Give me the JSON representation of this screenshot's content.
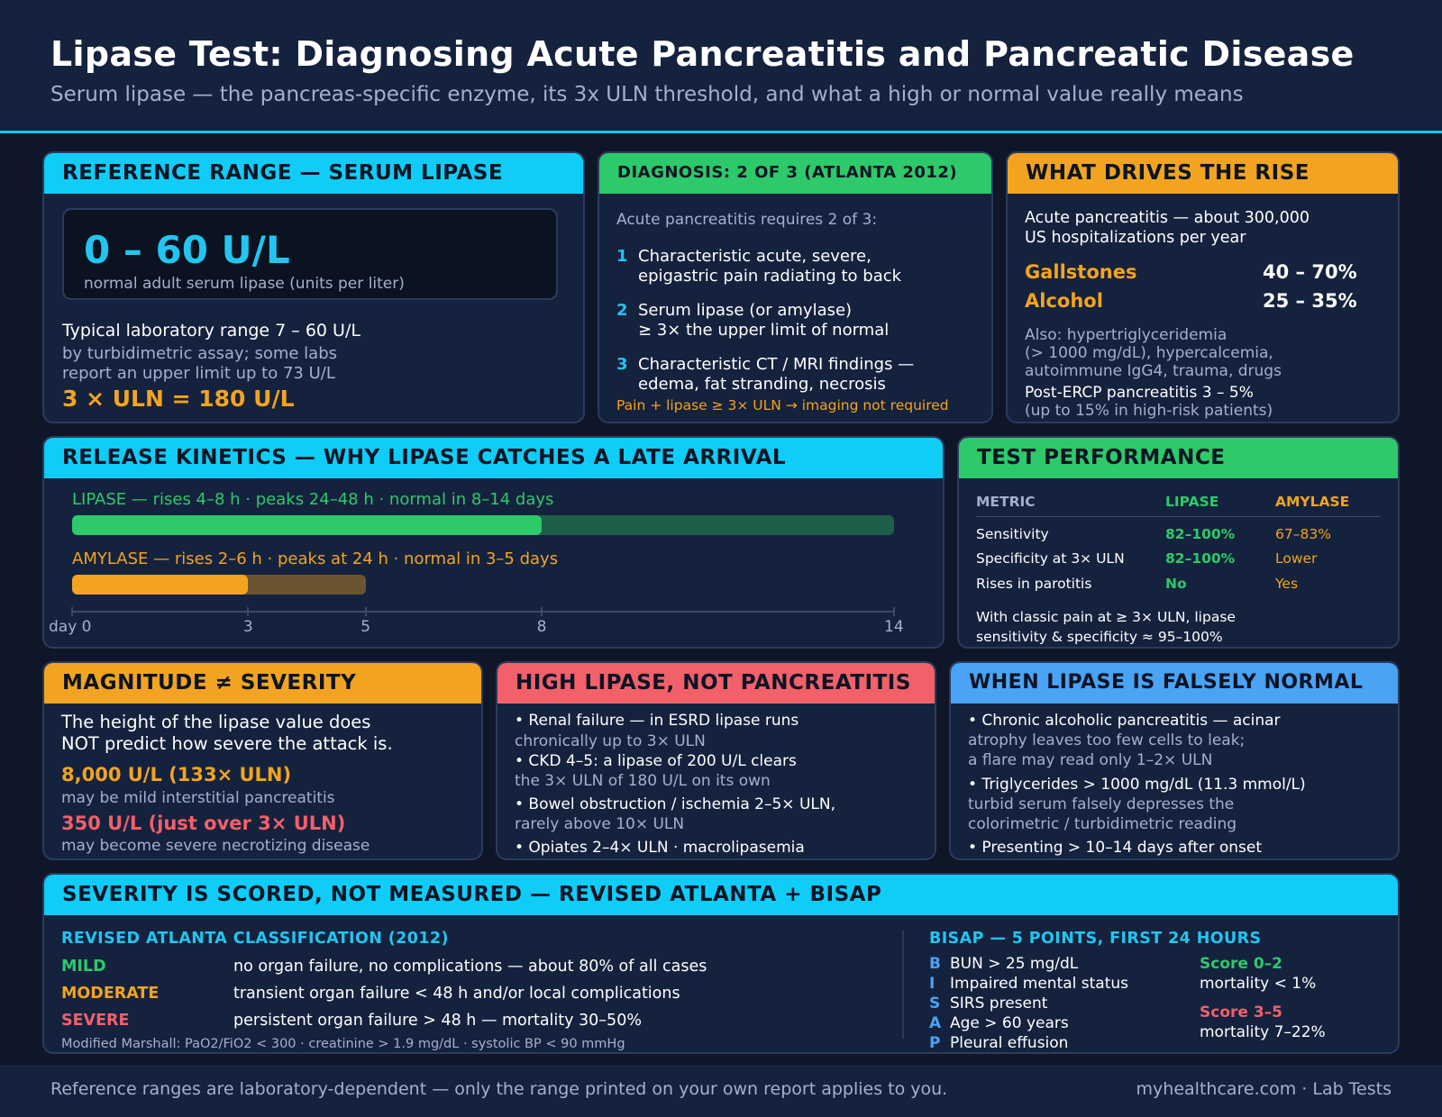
{
  "header": {
    "title": "Lipase Test: Diagnosing Acute Pancreatitis and Pancreatic Disease",
    "subtitle": "Serum lipase — the pancreas-specific enzyme, its 3x ULN threshold, and what a high or normal value really means"
  },
  "reference": {
    "heading": "REFERENCE RANGE — SERUM LIPASE",
    "range": "0 – 60 U/L",
    "range_note": "normal adult serum lipase (units per liter)",
    "typical": "Typical laboratory range 7 – 60 U/L",
    "assay_1": "by turbidimetric assay; some labs",
    "assay_2": "report an upper limit up to 73 U/L",
    "threshold": "3 × ULN = 180 U/L"
  },
  "diagnosis": {
    "heading": "DIAGNOSIS: 2 OF 3 (ATLANTA 2012)",
    "intro": "Acute pancreatitis requires 2 of 3:",
    "items": [
      {
        "num": "1",
        "line1": "Characteristic acute, severe,",
        "line2": "epigastric pain radiating to back"
      },
      {
        "num": "2",
        "line1": "Serum lipase (or amylase)",
        "line2": "≥ 3× the upper limit of normal"
      },
      {
        "num": "3",
        "line1": "Characteristic CT / MRI findings —",
        "line2": "edema, fat stranding, necrosis"
      }
    ],
    "note": "Pain + lipase ≥ 3× ULN → imaging not required"
  },
  "drivers": {
    "heading": "WHAT DRIVES THE RISE",
    "intro_1": "Acute pancreatitis — about 300,000",
    "intro_2": "US hospitalizations per year",
    "causes": [
      {
        "name": "Gallstones",
        "value": "40 – 70%"
      },
      {
        "name": "Alcohol",
        "value": "25 – 35%"
      }
    ],
    "also_1": "Also: hypertriglyceridemia",
    "also_2": "(> 1000 mg/dL), hypercalcemia,",
    "also_3": "autoimmune IgG4, trauma, drugs",
    "ercp_1": "Post-ERCP pancreatitis 3 – 5%",
    "ercp_2": "(up to 15% in high-risk patients)"
  },
  "kinetics": {
    "heading": "RELEASE KINETICS — WHY LIPASE CATCHES A LATE ARRIVAL",
    "lipase_label": "LIPASE — rises 4–8 h · peaks 24–48 h · normal in 8–14 days",
    "amylase_label": "AMYLASE — rises 2–6 h · peaks at 24 h · normal in 3–5 days",
    "axis_labels": [
      "day 0",
      "3",
      "5",
      "8",
      "14"
    ],
    "colors": {
      "lipase": "#2dc96a",
      "lipase_tail": "#1f5e48",
      "amylase": "#f2a420",
      "amylase_tail": "#6b5530"
    }
  },
  "chart_data": {
    "type": "bar",
    "title": "RELEASE KINETICS — WHY LIPASE CATCHES A LATE ARRIVAL",
    "xlabel": "",
    "xlim": [
      0,
      14
    ],
    "x_ticks": [
      0,
      3,
      5,
      8,
      14
    ],
    "series": [
      {
        "name": "LIPASE",
        "elevated_until": 8,
        "normal_by": 14
      },
      {
        "name": "AMYLASE",
        "elevated_until": 3,
        "normal_by": 5
      }
    ]
  },
  "performance": {
    "heading": "TEST PERFORMANCE",
    "columns": [
      "METRIC",
      "LIPASE",
      "AMYLASE"
    ],
    "rows": [
      {
        "metric": "Sensitivity",
        "lipase": "82–100%",
        "amylase": "67–83%"
      },
      {
        "metric": "Specificity at 3× ULN",
        "lipase": "82–100%",
        "amylase": "Lower"
      },
      {
        "metric": "Rises in parotitis",
        "lipase": "No",
        "amylase": "Yes"
      }
    ],
    "note_1": "With classic pain at ≥ 3× ULN, lipase",
    "note_2": "sensitivity & specificity ≈ 95–100%"
  },
  "magnitude": {
    "heading": "MAGNITUDE ≠ SEVERITY",
    "text_1": "The height of the lipase value does",
    "text_2": "NOT predict how severe the attack is.",
    "ex1_value": "8,000 U/L (133× ULN)",
    "ex1_note": "may be mild interstitial pancreatitis",
    "ex2_value": "350 U/L (just over 3× ULN)",
    "ex2_note": "may become severe necrotizing disease"
  },
  "high": {
    "heading": "HIGH LIPASE, NOT PANCREATITIS",
    "b1_1": "• Renal failure — in ESRD lipase runs",
    "b1_2": "chronically up to 3× ULN",
    "b2_1": "• CKD 4–5: a lipase of 200 U/L clears",
    "b2_2": "the 3× ULN of 180 U/L on its own",
    "b3_1": "• Bowel obstruction / ischemia 2–5× ULN,",
    "b3_2": "rarely above 10× ULN",
    "b4": "• Opiates 2–4× ULN · macrolipasemia"
  },
  "falsely": {
    "heading": "WHEN LIPASE IS FALSELY NORMAL",
    "b1_1": "• Chronic alcoholic pancreatitis — acinar",
    "b1_2": "atrophy leaves too few cells to leak;",
    "b1_3": "a flare may read only 1–2× ULN",
    "b2_1": "• Triglycerides > 1000 mg/dL (11.3 mmol/L)",
    "b2_2": "turbid serum falsely depresses the",
    "b2_3": "colorimetric / turbidimetric reading",
    "b3": "• Presenting > 10–14 days after onset"
  },
  "severity": {
    "heading": "SEVERITY IS SCORED, NOT MEASURED — REVISED ATLANTA + BISAP",
    "atlanta_title": "REVISED ATLANTA CLASSIFICATION (2012)",
    "classes": [
      {
        "name": "MILD",
        "desc": "no organ failure, no complications — about 80% of all cases"
      },
      {
        "name": "MODERATE",
        "desc": "transient organ failure < 48 h and/or local complications"
      },
      {
        "name": "SEVERE",
        "desc": "persistent organ failure > 48 h — mortality 30–50%"
      }
    ],
    "marshall": "Modified Marshall: PaO2/FiO2 < 300 · creatinine > 1.9 mg/dL · systolic BP < 90 mmHg",
    "bisap_title": "BISAP — 5 POINTS, FIRST 24 HOURS",
    "bisap": [
      {
        "letter": "B",
        "text": "BUN > 25 mg/dL"
      },
      {
        "letter": "I",
        "text": "Impaired mental status"
      },
      {
        "letter": "S",
        "text": "SIRS present"
      },
      {
        "letter": "A",
        "text": "Age > 60 years"
      },
      {
        "letter": "P",
        "text": "Pleural effusion"
      }
    ],
    "score_low": "Score 0–2",
    "score_low_note": "mortality < 1%",
    "score_high": "Score 3–5",
    "score_high_note": "mortality 7–22%"
  },
  "footer": {
    "disclaimer": "Reference ranges are laboratory-dependent — only the range printed on your own report applies to you.",
    "brand": "myhealthcare.com · Lab Tests"
  }
}
